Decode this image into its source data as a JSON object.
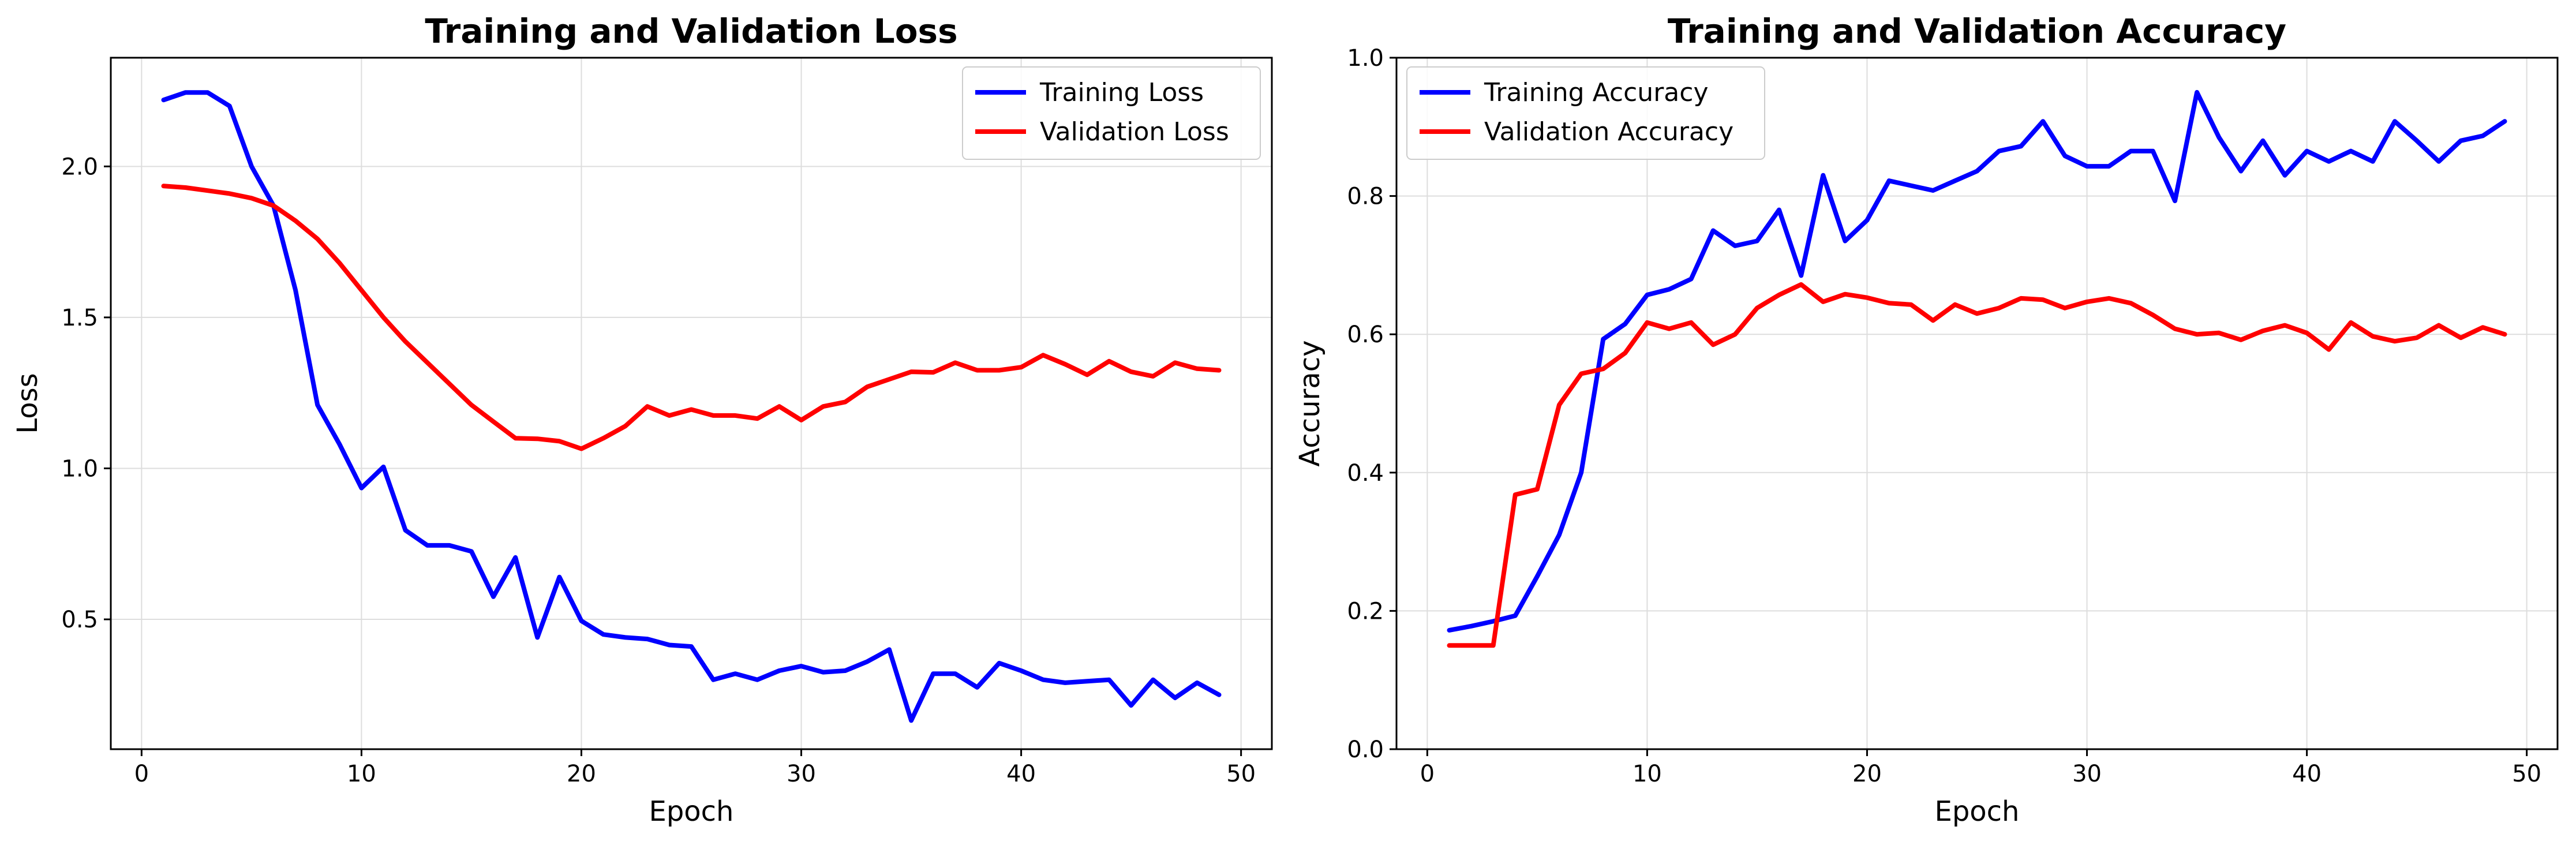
{
  "chart_data": [
    {
      "type": "line",
      "title": "Training and Validation Loss",
      "xlabel": "Epoch",
      "ylabel": "Loss",
      "xlim": [
        -1.4,
        51.4
      ],
      "ylim": [
        0.07,
        2.36
      ],
      "xticks": [
        0,
        10,
        20,
        30,
        40,
        50
      ],
      "xtick_labels": [
        "0",
        "10",
        "20",
        "30",
        "40",
        "50"
      ],
      "yticks": [
        0.5,
        1.0,
        1.5,
        2.0
      ],
      "ytick_labels": [
        "0.5",
        "1.0",
        "1.5",
        "2.0"
      ],
      "grid": true,
      "legend_position": "upper right",
      "x": [
        1,
        2,
        3,
        4,
        5,
        6,
        7,
        8,
        9,
        10,
        11,
        12,
        13,
        14,
        15,
        16,
        17,
        18,
        19,
        20,
        21,
        22,
        23,
        24,
        25,
        26,
        27,
        28,
        29,
        30,
        31,
        32,
        33,
        34,
        35,
        36,
        37,
        38,
        39,
        40,
        41,
        42,
        43,
        44,
        45,
        46,
        47,
        48,
        49
      ],
      "series": [
        {
          "name": "Training Loss",
          "color": "#0000ff",
          "values": [
            2.22,
            2.245,
            2.245,
            2.2,
            2.0,
            1.87,
            1.59,
            1.21,
            1.08,
            0.935,
            1.005,
            0.795,
            0.745,
            0.745,
            0.725,
            0.575,
            0.705,
            0.44,
            0.64,
            0.495,
            0.45,
            0.44,
            0.435,
            0.415,
            0.41,
            0.3,
            0.32,
            0.3,
            0.33,
            0.345,
            0.325,
            0.33,
            0.36,
            0.4,
            0.165,
            0.32,
            0.32,
            0.275,
            0.355,
            0.33,
            0.3,
            0.29,
            0.295,
            0.3,
            0.215,
            0.3,
            0.24,
            0.29,
            0.25
          ]
        },
        {
          "name": "Validation Loss",
          "color": "#ff0000",
          "values": [
            1.935,
            1.93,
            1.92,
            1.91,
            1.895,
            1.87,
            1.82,
            1.76,
            1.68,
            1.59,
            1.5,
            1.42,
            1.35,
            1.28,
            1.21,
            1.155,
            1.1,
            1.098,
            1.09,
            1.065,
            1.1,
            1.14,
            1.205,
            1.175,
            1.195,
            1.175,
            1.175,
            1.165,
            1.205,
            1.16,
            1.205,
            1.22,
            1.27,
            1.295,
            1.32,
            1.318,
            1.35,
            1.325,
            1.325,
            1.335,
            1.375,
            1.345,
            1.31,
            1.355,
            1.32,
            1.305,
            1.35,
            1.33,
            1.325
          ]
        }
      ]
    },
    {
      "type": "line",
      "title": "Training and Validation Accuracy",
      "xlabel": "Epoch",
      "ylabel": "Accuracy",
      "xlim": [
        -1.4,
        51.4
      ],
      "ylim": [
        0.0,
        1.0
      ],
      "xticks": [
        0,
        10,
        20,
        30,
        40,
        50
      ],
      "xtick_labels": [
        "0",
        "10",
        "20",
        "30",
        "40",
        "50"
      ],
      "yticks": [
        0.0,
        0.2,
        0.4,
        0.6,
        0.8,
        1.0
      ],
      "ytick_labels": [
        "0.0",
        "0.2",
        "0.4",
        "0.6",
        "0.8",
        "1.0"
      ],
      "grid": true,
      "legend_position": "upper left",
      "x": [
        1,
        2,
        3,
        4,
        5,
        6,
        7,
        8,
        9,
        10,
        11,
        12,
        13,
        14,
        15,
        16,
        17,
        18,
        19,
        20,
        21,
        22,
        23,
        24,
        25,
        26,
        27,
        28,
        29,
        30,
        31,
        32,
        33,
        34,
        35,
        36,
        37,
        38,
        39,
        40,
        41,
        42,
        43,
        44,
        45,
        46,
        47,
        48,
        49
      ],
      "series": [
        {
          "name": "Training Accuracy",
          "color": "#0000ff",
          "values": [
            0.172,
            0.178,
            0.185,
            0.193,
            0.25,
            0.31,
            0.4,
            0.593,
            0.615,
            0.657,
            0.665,
            0.68,
            0.75,
            0.728,
            0.735,
            0.78,
            0.685,
            0.83,
            0.735,
            0.765,
            0.822,
            0.815,
            0.808,
            0.822,
            0.836,
            0.865,
            0.872,
            0.908,
            0.858,
            0.843,
            0.843,
            0.865,
            0.865,
            0.793,
            0.95,
            0.885,
            0.836,
            0.88,
            0.83,
            0.865,
            0.85,
            0.865,
            0.85,
            0.908,
            0.88,
            0.85,
            0.88,
            0.887,
            0.908
          ]
        },
        {
          "name": "Validation Accuracy",
          "color": "#ff0000",
          "values": [
            0.15,
            0.15,
            0.15,
            0.368,
            0.376,
            0.498,
            0.543,
            0.55,
            0.573,
            0.617,
            0.608,
            0.617,
            0.585,
            0.6,
            0.638,
            0.657,
            0.672,
            0.647,
            0.658,
            0.653,
            0.645,
            0.643,
            0.62,
            0.643,
            0.63,
            0.638,
            0.652,
            0.65,
            0.638,
            0.647,
            0.652,
            0.645,
            0.628,
            0.608,
            0.6,
            0.602,
            0.592,
            0.605,
            0.613,
            0.602,
            0.578,
            0.617,
            0.597,
            0.59,
            0.595,
            0.613,
            0.595,
            0.61,
            0.6
          ]
        }
      ]
    }
  ]
}
